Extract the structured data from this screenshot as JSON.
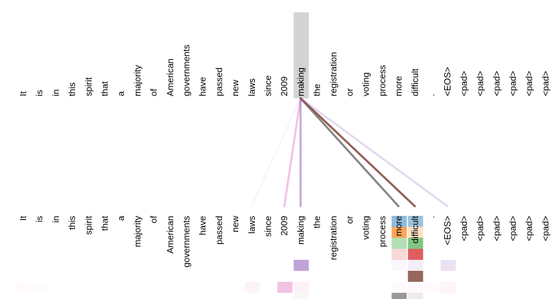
{
  "diagram": {
    "type": "attention-visualization",
    "tokens": [
      "It",
      "is",
      "in",
      "this",
      "spirit",
      "that",
      "a",
      "majority",
      "of",
      "American",
      "governments",
      "have",
      "passed",
      "new",
      "laws",
      "since",
      "2009",
      "making",
      "the",
      "registration",
      "or",
      "voting",
      "process",
      "more",
      "difficult",
      ".",
      "<EOS>",
      "<pad>",
      "<pad>",
      "<pad>",
      "<pad>",
      "<pad>",
      "<pad>"
    ],
    "selected_index": 17,
    "highlight_color": "#d3d3d3",
    "head_colors": [
      "#1f77b4",
      "#ff7f0e",
      "#2ca02c",
      "#d62728",
      "#9467bd",
      "#8c564b",
      "#e377c2",
      "#7f7f7f"
    ],
    "attention_lines": [
      {
        "target": 14,
        "color": "#e377c2",
        "opacity": 0.08
      },
      {
        "target": 16,
        "color": "#e377c2",
        "opacity": 0.45
      },
      {
        "target": 17,
        "color": "#9467bd",
        "opacity": 0.55
      },
      {
        "target": 23,
        "color": "#7f7f7f",
        "opacity": 0.95
      },
      {
        "target": 24,
        "color": "#8c564b",
        "opacity": 0.95
      },
      {
        "target": 26,
        "color": "#9467bd",
        "opacity": 0.25
      }
    ],
    "attention_cells": [
      {
        "token": 23,
        "head": 0,
        "color": "#1f77b4",
        "opacity": 0.5
      },
      {
        "token": 24,
        "head": 0,
        "color": "#1f77b4",
        "opacity": 0.45
      },
      {
        "token": 23,
        "head": 1,
        "color": "#ff7f0e",
        "opacity": 0.7
      },
      {
        "token": 24,
        "head": 1,
        "color": "#ff7f0e",
        "opacity": 0.25
      },
      {
        "token": 23,
        "head": 2,
        "color": "#2ca02c",
        "opacity": 0.35
      },
      {
        "token": 24,
        "head": 2,
        "color": "#2ca02c",
        "opacity": 0.6
      },
      {
        "token": 23,
        "head": 3,
        "color": "#d62728",
        "opacity": 0.18
      },
      {
        "token": 24,
        "head": 3,
        "color": "#d62728",
        "opacity": 0.75
      },
      {
        "token": 17,
        "head": 4,
        "color": "#9467bd",
        "opacity": 0.6
      },
      {
        "token": 23,
        "head": 4,
        "color": "#9467bd",
        "opacity": 0.05
      },
      {
        "token": 24,
        "head": 4,
        "color": "#9467bd",
        "opacity": 0.12
      },
      {
        "token": 26,
        "head": 4,
        "color": "#9467bd",
        "opacity": 0.2
      },
      {
        "token": 24,
        "head": 5,
        "color": "#8c564b",
        "opacity": 0.9
      },
      {
        "token": 0,
        "head": 6,
        "color": "#e377c2",
        "opacity": 0.04
      },
      {
        "token": 1,
        "head": 6,
        "color": "#e377c2",
        "opacity": 0.03
      },
      {
        "token": 14,
        "head": 6,
        "color": "#e377c2",
        "opacity": 0.08
      },
      {
        "token": 16,
        "head": 6,
        "color": "#e377c2",
        "opacity": 0.45
      },
      {
        "token": 17,
        "head": 6,
        "color": "#e377c2",
        "opacity": 0.1
      },
      {
        "token": 23,
        "head": 6,
        "color": "#e377c2",
        "opacity": 0.04
      },
      {
        "token": 24,
        "head": 6,
        "color": "#e377c2",
        "opacity": 0.05
      },
      {
        "token": 25,
        "head": 6,
        "color": "#e377c2",
        "opacity": 0.04
      },
      {
        "token": 26,
        "head": 6,
        "color": "#e377c2",
        "opacity": 0.08
      },
      {
        "token": 17,
        "head": 7,
        "color": "#7f7f7f",
        "opacity": 0.05
      },
      {
        "token": 23,
        "head": 7,
        "color": "#7f7f7f",
        "opacity": 0.8
      },
      {
        "token": 24,
        "head": 7,
        "color": "#7f7f7f",
        "opacity": 0.15
      }
    ]
  }
}
